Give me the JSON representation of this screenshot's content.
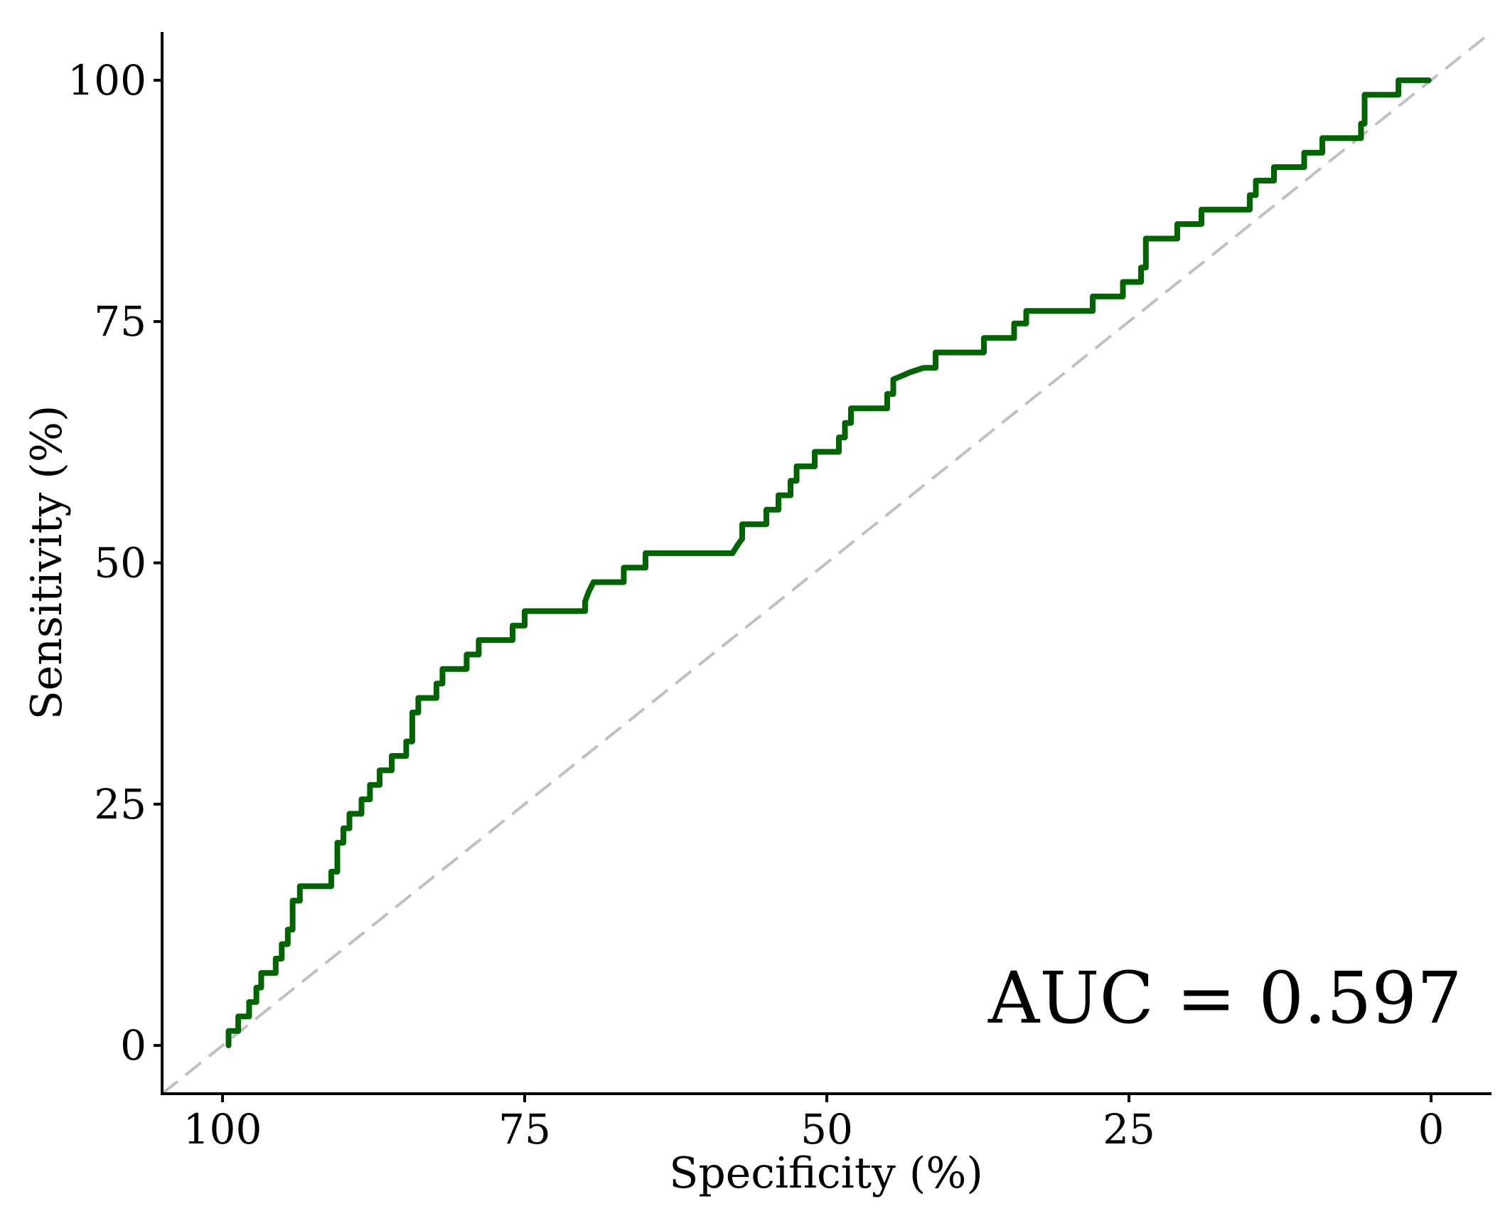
{
  "chart_data": {
    "type": "line",
    "title": "",
    "xlabel": "Specificity (%)",
    "ylabel": "Sensitivity (%)",
    "x_reversed": true,
    "xlim": [
      105,
      -5
    ],
    "ylim": [
      -5,
      105
    ],
    "xticks": [
      100,
      75,
      50,
      25,
      0
    ],
    "yticks": [
      0,
      25,
      50,
      75,
      100
    ],
    "grid": false,
    "annotation": "AUC = 0.597",
    "reference_line": {
      "style": "dashed",
      "color": "#c0c0c0",
      "from": [
        100,
        0
      ],
      "to": [
        0,
        100
      ]
    },
    "series": [
      {
        "color": "#006400",
        "step": true,
        "x": [
          99.5,
          99.5,
          98.7,
          98.7,
          97.8,
          97.8,
          97.2,
          97.2,
          96.8,
          96.8,
          95.6,
          95.6,
          95.1,
          95.1,
          94.6,
          94.6,
          94.2,
          94.2,
          93.6,
          93.6,
          91.0,
          91.0,
          90.5,
          90.5,
          90.0,
          90.0,
          89.5,
          89.5,
          88.5,
          88.5,
          87.8,
          87.8,
          87.0,
          87.0,
          86.0,
          86.0,
          84.8,
          84.8,
          84.3,
          84.3,
          83.8,
          83.8,
          82.3,
          82.3,
          81.8,
          81.8,
          79.8,
          79.8,
          78.8,
          78.8,
          76.0,
          76.0,
          75.0,
          75.0,
          70.0,
          70.0,
          69.7,
          69.3,
          66.8,
          66.8,
          65.0,
          65.0,
          57.8,
          57.3,
          57.0,
          57.0,
          55.0,
          55.0,
          54.0,
          54.0,
          53.0,
          53.0,
          52.5,
          52.5,
          51.0,
          51.0,
          49.0,
          49.0,
          48.5,
          48.5,
          48.0,
          48.0,
          45.0,
          45.0,
          44.5,
          44.5,
          43.0,
          42.0,
          41.0,
          41.0,
          37.0,
          37.0,
          34.5,
          34.5,
          33.5,
          33.5,
          28.0,
          28.0,
          25.5,
          25.5,
          24.0,
          24.0,
          23.6,
          23.6,
          21.0,
          21.0,
          19.0,
          19.0,
          15.0,
          15.0,
          14.5,
          14.5,
          13.0,
          13.0,
          10.5,
          10.5,
          9.0,
          9.0,
          5.8,
          5.8,
          5.5,
          5.5,
          2.7,
          2.7,
          0.2
        ],
        "y": [
          0.0,
          1.5,
          1.5,
          3.0,
          3.0,
          4.5,
          4.5,
          6.0,
          6.0,
          7.5,
          7.5,
          9.0,
          9.0,
          10.5,
          10.5,
          12.0,
          12.0,
          15.0,
          15.0,
          16.5,
          16.5,
          18.0,
          18.0,
          21.0,
          21.0,
          22.5,
          22.5,
          24.0,
          24.0,
          25.5,
          25.5,
          27.0,
          27.0,
          28.5,
          28.5,
          30.0,
          30.0,
          31.5,
          31.5,
          34.5,
          34.5,
          36.0,
          36.0,
          37.5,
          37.5,
          39.0,
          39.0,
          40.5,
          40.5,
          42.0,
          42.0,
          43.5,
          43.5,
          45.0,
          45.0,
          46.0,
          47.0,
          48.0,
          48.0,
          49.5,
          49.5,
          51.0,
          51.0,
          52.0,
          52.5,
          54.0,
          54.0,
          55.5,
          55.5,
          57.0,
          57.0,
          58.5,
          58.5,
          60.0,
          60.0,
          61.5,
          61.5,
          63.0,
          63.0,
          64.5,
          64.5,
          66.0,
          66.0,
          67.5,
          67.5,
          69.0,
          69.8,
          70.2,
          70.2,
          71.8,
          71.8,
          73.3,
          73.3,
          74.8,
          74.8,
          76.1,
          76.1,
          77.6,
          77.6,
          79.1,
          79.1,
          80.6,
          80.6,
          83.6,
          83.6,
          85.1,
          85.1,
          86.6,
          86.6,
          88.1,
          88.1,
          89.6,
          89.6,
          91.0,
          91.0,
          92.5,
          92.5,
          94.0,
          94.0,
          95.5,
          95.5,
          98.5,
          98.5,
          100.0,
          100.0
        ]
      }
    ]
  }
}
